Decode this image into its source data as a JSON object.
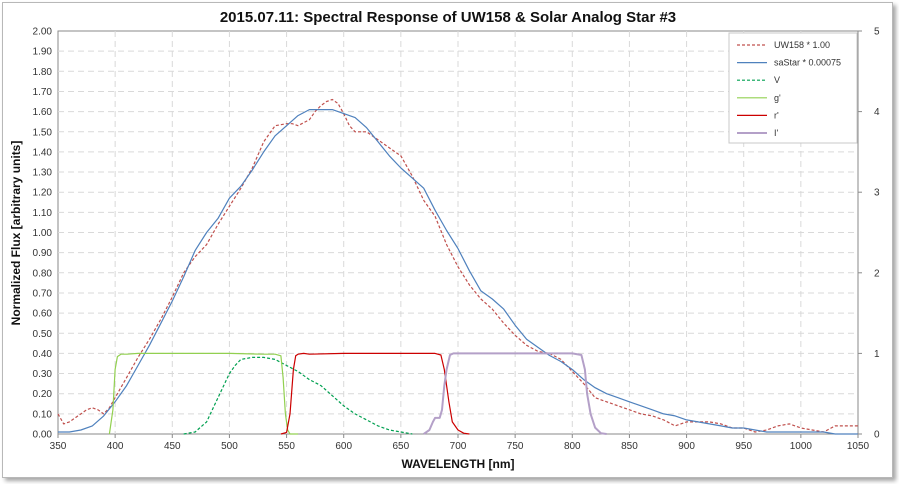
{
  "chart_data": {
    "type": "line",
    "title": "2015.07.11: Spectral Response of UW158 & Solar Analog Star #3",
    "xlabel": "WAVELENGTH [nm]",
    "ylabel": "Normalized Flux [arbitrary units]",
    "xlim": [
      350,
      1050
    ],
    "ylim": [
      0,
      2
    ],
    "y2lim": [
      0,
      5
    ],
    "x_ticks": [
      350,
      400,
      450,
      500,
      550,
      600,
      650,
      700,
      750,
      800,
      850,
      900,
      950,
      1000,
      1050
    ],
    "y_ticks": [
      "0.00",
      "0.10",
      "0.20",
      "0.30",
      "0.40",
      "0.50",
      "0.60",
      "0.70",
      "0.80",
      "0.90",
      "1.00",
      "1.10",
      "1.20",
      "1.30",
      "1.40",
      "1.50",
      "1.60",
      "1.70",
      "1.80",
      "1.90",
      "2.00"
    ],
    "y2_ticks": [
      "0",
      "1",
      "2",
      "3",
      "4",
      "5"
    ],
    "grid": true,
    "legend_position": "top-right",
    "series": [
      {
        "name": "UW158 * 1.00",
        "axis": "left",
        "color": "#c0504d",
        "style": "dashed",
        "x": [
          350,
          355,
          360,
          365,
          370,
          375,
          380,
          385,
          390,
          395,
          400,
          410,
          420,
          430,
          440,
          450,
          460,
          470,
          480,
          490,
          500,
          510,
          520,
          530,
          540,
          550,
          555,
          560,
          570,
          575,
          580,
          585,
          590,
          595,
          600,
          605,
          610,
          615,
          620,
          630,
          640,
          650,
          660,
          670,
          680,
          690,
          700,
          710,
          720,
          730,
          740,
          750,
          760,
          770,
          780,
          790,
          800,
          810,
          820,
          830,
          840,
          850,
          860,
          870,
          880,
          890,
          900,
          910,
          920,
          930,
          940,
          950,
          960,
          970,
          980,
          990,
          1000,
          1010,
          1020,
          1030,
          1040,
          1050
        ],
        "y": [
          0.1,
          0.05,
          0.06,
          0.08,
          0.1,
          0.12,
          0.13,
          0.12,
          0.1,
          0.13,
          0.18,
          0.28,
          0.38,
          0.47,
          0.57,
          0.68,
          0.8,
          0.88,
          0.94,
          1.04,
          1.13,
          1.22,
          1.32,
          1.45,
          1.53,
          1.54,
          1.54,
          1.53,
          1.56,
          1.6,
          1.63,
          1.65,
          1.66,
          1.64,
          1.59,
          1.53,
          1.5,
          1.5,
          1.5,
          1.46,
          1.42,
          1.38,
          1.28,
          1.16,
          1.08,
          0.94,
          0.83,
          0.74,
          0.67,
          0.62,
          0.55,
          0.49,
          0.44,
          0.41,
          0.4,
          0.37,
          0.31,
          0.25,
          0.18,
          0.16,
          0.14,
          0.12,
          0.1,
          0.09,
          0.07,
          0.04,
          0.06,
          0.06,
          0.06,
          0.05,
          0.03,
          0.03,
          0.01,
          0.02,
          0.04,
          0.05,
          0.03,
          0.02,
          0.01,
          0.04,
          0.04,
          0.04
        ]
      },
      {
        "name": "saStar * 0.00075",
        "axis": "left",
        "color": "#4f81bd",
        "style": "solid",
        "x": [
          350,
          360,
          370,
          380,
          390,
          400,
          410,
          420,
          430,
          440,
          450,
          460,
          470,
          480,
          490,
          500,
          510,
          520,
          530,
          540,
          550,
          560,
          570,
          580,
          590,
          600,
          610,
          620,
          630,
          640,
          650,
          660,
          670,
          680,
          690,
          700,
          710,
          720,
          730,
          740,
          750,
          760,
          770,
          780,
          790,
          800,
          810,
          820,
          830,
          840,
          850,
          860,
          870,
          880,
          890,
          900,
          910,
          920,
          930,
          940,
          950,
          960,
          970,
          980,
          990,
          1000,
          1010,
          1020,
          1030,
          1040,
          1050
        ],
        "y": [
          0.01,
          0.01,
          0.02,
          0.04,
          0.09,
          0.16,
          0.24,
          0.34,
          0.44,
          0.55,
          0.66,
          0.78,
          0.91,
          1.0,
          1.07,
          1.17,
          1.23,
          1.31,
          1.4,
          1.48,
          1.53,
          1.58,
          1.61,
          1.61,
          1.61,
          1.59,
          1.57,
          1.52,
          1.45,
          1.38,
          1.32,
          1.27,
          1.22,
          1.11,
          1.01,
          0.92,
          0.81,
          0.71,
          0.67,
          0.62,
          0.54,
          0.47,
          0.43,
          0.39,
          0.36,
          0.32,
          0.27,
          0.23,
          0.2,
          0.18,
          0.16,
          0.14,
          0.12,
          0.1,
          0.09,
          0.07,
          0.06,
          0.05,
          0.04,
          0.03,
          0.03,
          0.02,
          0.01,
          0.01,
          0.01,
          0.01,
          0.01,
          0.01,
          0.0,
          0.0,
          0.0
        ]
      },
      {
        "name": "V",
        "axis": "left",
        "color": "#00a050",
        "style": "dashed",
        "x": [
          460,
          470,
          480,
          490,
          495,
          500,
          505,
          510,
          520,
          530,
          540,
          550,
          560,
          570,
          580,
          590,
          600,
          610,
          620,
          630,
          640,
          650,
          660
        ],
        "y": [
          0.0,
          0.01,
          0.06,
          0.18,
          0.24,
          0.3,
          0.34,
          0.37,
          0.38,
          0.38,
          0.37,
          0.34,
          0.31,
          0.27,
          0.24,
          0.19,
          0.14,
          0.1,
          0.07,
          0.04,
          0.02,
          0.01,
          0.0
        ]
      },
      {
        "name": "g'",
        "axis": "right",
        "color": "#92d050",
        "style": "solid",
        "x": [
          395,
          398,
          400,
          402,
          405,
          410,
          420,
          450,
          500,
          530,
          540,
          545,
          547,
          549,
          551,
          553,
          560
        ],
        "y": [
          0.0,
          0.3,
          0.8,
          0.96,
          0.99,
          0.99,
          1.0,
          1.0,
          1.0,
          0.99,
          0.99,
          0.97,
          0.7,
          0.25,
          0.05,
          0.0,
          0.0
        ]
      },
      {
        "name": "r'",
        "axis": "right",
        "color": "#cc0000",
        "style": "solid",
        "x": [
          545,
          550,
          553,
          556,
          558,
          560,
          565,
          570,
          600,
          650,
          680,
          685,
          688,
          692,
          695,
          700,
          705,
          710
        ],
        "y": [
          0.0,
          0.02,
          0.25,
          0.8,
          0.97,
          0.99,
          1.0,
          0.99,
          1.0,
          1.0,
          1.0,
          0.98,
          0.8,
          0.4,
          0.15,
          0.05,
          0.01,
          0.0
        ]
      },
      {
        "name": "I'",
        "axis": "right",
        "color": "#b4a0c8",
        "style": "solid",
        "x": [
          670,
          675,
          678,
          680,
          684,
          686,
          688,
          690,
          693,
          696,
          700,
          750,
          800,
          808,
          811,
          813,
          816,
          820,
          825,
          830
        ],
        "y": [
          0.0,
          0.05,
          0.15,
          0.2,
          0.2,
          0.3,
          0.6,
          0.8,
          0.98,
          1.0,
          1.0,
          1.0,
          1.0,
          0.98,
          0.8,
          0.5,
          0.25,
          0.08,
          0.01,
          0.0
        ]
      }
    ]
  }
}
